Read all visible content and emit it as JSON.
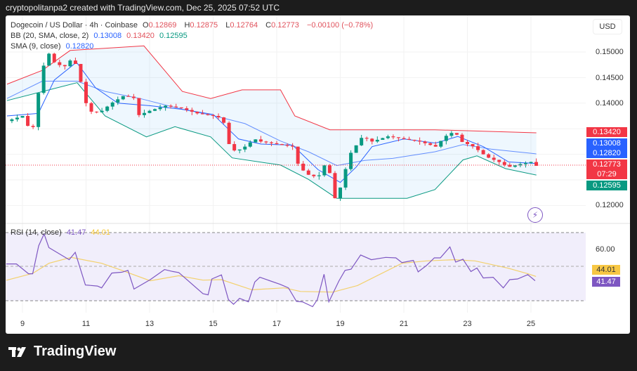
{
  "topbar": {
    "caption": "cryptopolitanpa2 created with TradingView.com, Dec 25, 2025 07:52 UTC"
  },
  "legend": {
    "symbol": "Dogecoin / US Dollar · 4h · Coinbase",
    "o_label": "O",
    "o": "0.12869",
    "h_label": "H",
    "h": "0.12875",
    "l_label": "L",
    "l": "0.12764",
    "c_label": "C",
    "c": "0.12773",
    "change": "−0.00100 (−0.78%)",
    "bb_label": "BB (20, SMA, close, 2)",
    "bb_basis": "0.13008",
    "bb_upper": "0.13420",
    "bb_lower": "0.12595",
    "sma_label": "SMA (9, close)",
    "sma": "0.12820",
    "rsi_label": "RSI (14, close)",
    "rsi": "41.47",
    "rsi_ma": "44.01"
  },
  "price_axis": {
    "currency": "USD",
    "ticks": [
      "0.15000",
      "0.14500",
      "0.14000",
      "0.12000"
    ],
    "labels": {
      "bb_upper": "0.13420",
      "bb_basis": "0.13008",
      "sma": "0.12820",
      "last": "0.12773",
      "countdown": "07:29",
      "bb_lower": "0.12595"
    }
  },
  "rsi_axis": {
    "ticks": [
      "60.00"
    ],
    "rsi": "41.47",
    "rsi_ma": "44.01"
  },
  "time_axis": {
    "ticks": [
      "9",
      "11",
      "13",
      "15",
      "17",
      "19",
      "21",
      "23",
      "25"
    ]
  },
  "colors": {
    "up": "#089981",
    "down": "#f23645",
    "bb_upper": "#f23645",
    "bb_basis": "#2962ff",
    "bb_lower": "#089981",
    "sma": "#2962ff",
    "rsi": "#7e57c2",
    "rsi_ma": "#f4c430",
    "band_fill": "#2196f3"
  },
  "brand": {
    "name": "TradingView"
  },
  "chart_data": [
    {
      "type": "candlestick",
      "title": "Dogecoin / US Dollar · 4h · Coinbase",
      "x_unit": "day of Dec 2025",
      "xlim": [
        8.5,
        25.2
      ],
      "ylim": [
        0.1165,
        0.1525
      ],
      "price_path": [
        [
          8.5,
          0.1365
        ],
        [
          9.0,
          0.1375
        ],
        [
          9.3,
          0.134
        ],
        [
          9.6,
          0.146
        ],
        [
          9.8,
          0.15
        ],
        [
          10.0,
          0.148
        ],
        [
          10.3,
          0.147
        ],
        [
          10.6,
          0.149
        ],
        [
          10.8,
          0.145
        ],
        [
          11.0,
          0.14
        ],
        [
          11.2,
          0.138
        ],
        [
          11.5,
          0.1385
        ],
        [
          11.8,
          0.14
        ],
        [
          12.2,
          0.1415
        ],
        [
          12.5,
          0.141
        ],
        [
          12.6,
          0.1375
        ],
        [
          13.0,
          0.1385
        ],
        [
          13.5,
          0.1395
        ],
        [
          14.0,
          0.139
        ],
        [
          14.5,
          0.138
        ],
        [
          15.0,
          0.1375
        ],
        [
          15.3,
          0.137
        ],
        [
          15.5,
          0.132
        ],
        [
          15.7,
          0.1305
        ],
        [
          16.0,
          0.1315
        ],
        [
          16.3,
          0.133
        ],
        [
          16.5,
          0.1325
        ],
        [
          17.0,
          0.132
        ],
        [
          17.5,
          0.1315
        ],
        [
          17.7,
          0.1275
        ],
        [
          18.0,
          0.126
        ],
        [
          18.3,
          0.1255
        ],
        [
          18.6,
          0.129
        ],
        [
          18.8,
          0.121
        ],
        [
          19.0,
          0.1235
        ],
        [
          19.3,
          0.13
        ],
        [
          19.7,
          0.1335
        ],
        [
          20.0,
          0.1325
        ],
        [
          20.5,
          0.1335
        ],
        [
          21.0,
          0.133
        ],
        [
          21.5,
          0.1325
        ],
        [
          22.0,
          0.1315
        ],
        [
          22.3,
          0.1335
        ],
        [
          22.6,
          0.1345
        ],
        [
          22.8,
          0.1325
        ],
        [
          23.2,
          0.1315
        ],
        [
          23.6,
          0.1295
        ],
        [
          24.0,
          0.1285
        ],
        [
          24.3,
          0.1275
        ],
        [
          24.6,
          0.128
        ],
        [
          25.0,
          0.1285
        ],
        [
          25.17,
          0.12773
        ]
      ],
      "bb_upper": [
        [
          8.51,
          0.1437
        ],
        [
          9.62,
          0.1464
        ],
        [
          10.5,
          0.1503
        ],
        [
          12.82,
          0.1512
        ],
        [
          14.03,
          0.1423
        ],
        [
          14.92,
          0.1409
        ],
        [
          15.91,
          0.1426
        ],
        [
          17.12,
          0.1426
        ],
        [
          17.57,
          0.1375
        ],
        [
          18.67,
          0.1348
        ],
        [
          21.98,
          0.1348
        ],
        [
          25.17,
          0.1342
        ]
      ],
      "bb_basis": [
        [
          8.51,
          0.1409
        ],
        [
          9.62,
          0.1443
        ],
        [
          10.72,
          0.1443
        ],
        [
          11.6,
          0.1423
        ],
        [
          12.7,
          0.1409
        ],
        [
          14.03,
          0.1388
        ],
        [
          14.92,
          0.1377
        ],
        [
          16.0,
          0.136
        ],
        [
          17.12,
          0.1326
        ],
        [
          18.0,
          0.1305
        ],
        [
          18.89,
          0.1278
        ],
        [
          19.77,
          0.1288
        ],
        [
          20.65,
          0.1292
        ],
        [
          21.98,
          0.1305
        ],
        [
          22.86,
          0.1319
        ],
        [
          23.75,
          0.131
        ],
        [
          25.17,
          0.13008
        ]
      ],
      "bb_lower": [
        [
          8.51,
          0.1405
        ],
        [
          10.72,
          0.144
        ],
        [
          11.6,
          0.1375
        ],
        [
          12.9,
          0.1334
        ],
        [
          13.8,
          0.1354
        ],
        [
          14.92,
          0.1334
        ],
        [
          15.6,
          0.1293
        ],
        [
          17.12,
          0.1279
        ],
        [
          18.0,
          0.1251
        ],
        [
          18.89,
          0.1214
        ],
        [
          21.1,
          0.1214
        ],
        [
          21.98,
          0.1231
        ],
        [
          22.86,
          0.1289
        ],
        [
          23.3,
          0.1297
        ],
        [
          24.2,
          0.1272
        ],
        [
          25.17,
          0.12595
        ]
      ],
      "sma": [
        [
          8.51,
          0.1375
        ],
        [
          9.5,
          0.138
        ],
        [
          10.0,
          0.1445
        ],
        [
          10.7,
          0.148
        ],
        [
          11.3,
          0.143
        ],
        [
          12.0,
          0.14
        ],
        [
          13.0,
          0.1395
        ],
        [
          14.0,
          0.1388
        ],
        [
          15.0,
          0.1378
        ],
        [
          15.8,
          0.133
        ],
        [
          16.5,
          0.132
        ],
        [
          17.5,
          0.1318
        ],
        [
          18.3,
          0.127
        ],
        [
          19.0,
          0.1245
        ],
        [
          19.5,
          0.1275
        ],
        [
          20.0,
          0.1315
        ],
        [
          21.0,
          0.133
        ],
        [
          22.0,
          0.1322
        ],
        [
          22.7,
          0.1335
        ],
        [
          23.5,
          0.1315
        ],
        [
          24.3,
          0.1285
        ],
        [
          25.17,
          0.1282
        ]
      ]
    },
    {
      "type": "line",
      "title": "RSI (14, close)",
      "ylim": [
        20,
        75
      ],
      "bands": [
        30,
        50,
        70
      ],
      "rsi": [
        [
          8.49,
          51.4
        ],
        [
          8.81,
          51.4
        ],
        [
          9.19,
          45.6
        ],
        [
          9.32,
          45.6
        ],
        [
          9.51,
          62.2
        ],
        [
          9.68,
          69.2
        ],
        [
          9.83,
          61.1
        ],
        [
          10.47,
          53.9
        ],
        [
          10.66,
          58.3
        ],
        [
          10.98,
          38.9
        ],
        [
          11.36,
          38.3
        ],
        [
          11.49,
          37.2
        ],
        [
          11.81,
          46.0
        ],
        [
          12.13,
          46.5
        ],
        [
          12.32,
          47.6
        ],
        [
          12.51,
          36.5
        ],
        [
          13.02,
          42.1
        ],
        [
          13.47,
          48.1
        ],
        [
          13.73,
          46.9
        ],
        [
          13.92,
          46.3
        ],
        [
          14.68,
          33.8
        ],
        [
          14.84,
          33.1
        ],
        [
          14.96,
          42.5
        ],
        [
          15.26,
          44.9
        ],
        [
          15.48,
          30.3
        ],
        [
          15.64,
          27.5
        ],
        [
          15.83,
          31.0
        ],
        [
          16.11,
          28.9
        ],
        [
          16.31,
          40.7
        ],
        [
          16.47,
          43.5
        ],
        [
          17.11,
          39.3
        ],
        [
          17.37,
          37.2
        ],
        [
          17.62,
          29.2
        ],
        [
          17.81,
          28.9
        ],
        [
          18.13,
          26.1
        ],
        [
          18.28,
          30.3
        ],
        [
          18.49,
          45.3
        ],
        [
          18.64,
          28.9
        ],
        [
          18.96,
          41.4
        ],
        [
          19.15,
          47.6
        ],
        [
          19.34,
          48.3
        ],
        [
          19.64,
          56.7
        ],
        [
          19.98,
          53.9
        ],
        [
          20.43,
          55.3
        ],
        [
          20.75,
          55.0
        ],
        [
          20.94,
          52.2
        ],
        [
          21.3,
          53.5
        ],
        [
          21.45,
          46.7
        ],
        [
          21.71,
          50.4
        ],
        [
          21.96,
          55.0
        ],
        [
          22.15,
          55.0
        ],
        [
          22.45,
          61.5
        ],
        [
          22.63,
          52.5
        ],
        [
          22.86,
          54.2
        ],
        [
          23.11,
          46.9
        ],
        [
          23.3,
          49.0
        ],
        [
          23.5,
          43.1
        ],
        [
          23.81,
          43.5
        ],
        [
          24.13,
          37.2
        ],
        [
          24.33,
          42.1
        ],
        [
          24.58,
          42.5
        ],
        [
          24.9,
          45.1
        ],
        [
          25.13,
          41.47
        ]
      ],
      "rsi_ma": [
        [
          8.49,
          41.7
        ],
        [
          9.32,
          45.8
        ],
        [
          9.83,
          51.8
        ],
        [
          10.53,
          55.3
        ],
        [
          11.49,
          51.8
        ],
        [
          12.13,
          47.6
        ],
        [
          13.02,
          41.4
        ],
        [
          13.92,
          44.4
        ],
        [
          14.68,
          41.8
        ],
        [
          15.26,
          42.1
        ],
        [
          16.22,
          36.1
        ],
        [
          17.24,
          37.2
        ],
        [
          17.75,
          35.1
        ],
        [
          18.77,
          34.7
        ],
        [
          19.54,
          38.6
        ],
        [
          20.94,
          51.8
        ],
        [
          21.71,
          53.2
        ],
        [
          22.6,
          53.9
        ],
        [
          23.24,
          53.2
        ],
        [
          24.26,
          49.0
        ],
        [
          24.9,
          45.6
        ],
        [
          25.16,
          44.01
        ]
      ]
    }
  ]
}
